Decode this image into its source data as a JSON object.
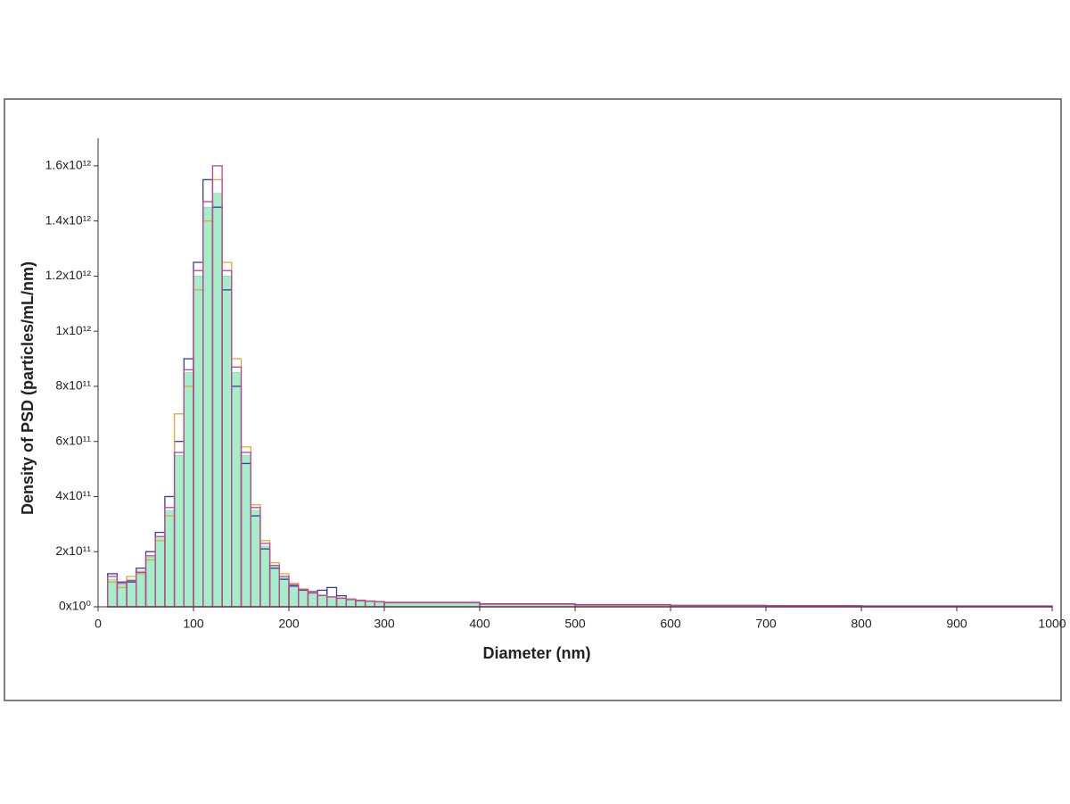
{
  "chart_data": {
    "type": "histogram",
    "xlabel": "Diameter (nm)",
    "ylabel": "Density of PSD (particles/mL/nm)",
    "bins": [
      10,
      20,
      30,
      40,
      50,
      60,
      70,
      80,
      90,
      100,
      110,
      120,
      130,
      140,
      150,
      160,
      170,
      180,
      190,
      200,
      210,
      220,
      230,
      240,
      250,
      260,
      270,
      280,
      290,
      300,
      400,
      500,
      600,
      700,
      800,
      900,
      1000
    ],
    "series": [
      {
        "color": "#7fe8b0",
        "fill": true,
        "values": [
          100000000000,
          80000000000,
          100000000000,
          130000000000,
          180000000000,
          250000000000,
          350000000000,
          550000000000,
          850000000000,
          1200000000000,
          1450000000000,
          1500000000000,
          1200000000000,
          850000000000,
          550000000000,
          350000000000,
          220000000000,
          150000000000,
          110000000000,
          80000000000,
          60000000000,
          50000000000,
          40000000000,
          35000000000,
          30000000000,
          25000000000,
          22000000000,
          20000000000,
          18000000000,
          15000000000,
          10000000000,
          7000000000,
          5000000000,
          4000000000,
          3000000000,
          3000000000
        ]
      },
      {
        "color": "#3a3aa0",
        "fill": false,
        "values": [
          120000000000,
          90000000000,
          90000000000,
          140000000000,
          200000000000,
          270000000000,
          400000000000,
          600000000000,
          900000000000,
          1250000000000,
          1550000000000,
          1450000000000,
          1150000000000,
          800000000000,
          520000000000,
          330000000000,
          210000000000,
          140000000000,
          100000000000,
          75000000000,
          60000000000,
          55000000000,
          60000000000,
          70000000000,
          40000000000,
          28000000000,
          24000000000,
          21000000000,
          19000000000,
          16000000000,
          11000000000,
          8000000000,
          5000000000,
          4000000000,
          3000000000,
          3000000000
        ]
      },
      {
        "color": "#e8a830",
        "fill": false,
        "values": [
          90000000000,
          70000000000,
          110000000000,
          120000000000,
          170000000000,
          240000000000,
          330000000000,
          700000000000,
          800000000000,
          1150000000000,
          1400000000000,
          1550000000000,
          1250000000000,
          900000000000,
          580000000000,
          370000000000,
          240000000000,
          160000000000,
          120000000000,
          85000000000,
          65000000000,
          52000000000,
          42000000000,
          36000000000,
          32000000000,
          27000000000,
          23000000000,
          21000000000,
          19000000000,
          14000000000,
          9000000000,
          6000000000,
          5000000000,
          4000000000,
          3000000000,
          2000000000
        ]
      },
      {
        "color": "#c040a0",
        "fill": false,
        "values": [
          110000000000,
          85000000000,
          95000000000,
          125000000000,
          185000000000,
          255000000000,
          360000000000,
          560000000000,
          860000000000,
          1220000000000,
          1470000000000,
          1600000000000,
          1220000000000,
          870000000000,
          560000000000,
          360000000000,
          230000000000,
          150000000000,
          110000000000,
          80000000000,
          62000000000,
          50000000000,
          41000000000,
          36000000000,
          31000000000,
          26000000000,
          22000000000,
          20000000000,
          18000000000,
          15000000000,
          10000000000,
          7000000000,
          5000000000,
          4000000000,
          3000000000,
          3000000000
        ]
      }
    ],
    "xlim": [
      0,
      1000
    ],
    "xticks": [
      0,
      100,
      200,
      300,
      400,
      500,
      600,
      700,
      800,
      900,
      1000
    ],
    "ylim": [
      0,
      1700000000000
    ],
    "yticks": [
      {
        "value": 0,
        "label": "0x10⁰"
      },
      {
        "value": 200000000000,
        "label": "2x10¹¹"
      },
      {
        "value": 400000000000,
        "label": "4x10¹¹"
      },
      {
        "value": 600000000000,
        "label": "6x10¹¹"
      },
      {
        "value": 800000000000,
        "label": "8x10¹¹"
      },
      {
        "value": 1000000000000,
        "label": "1x10¹²"
      },
      {
        "value": 1200000000000,
        "label": "1.2x10¹²"
      },
      {
        "value": 1400000000000,
        "label": "1.4x10¹²"
      },
      {
        "value": 1600000000000,
        "label": "1.6x10¹²"
      }
    ]
  }
}
